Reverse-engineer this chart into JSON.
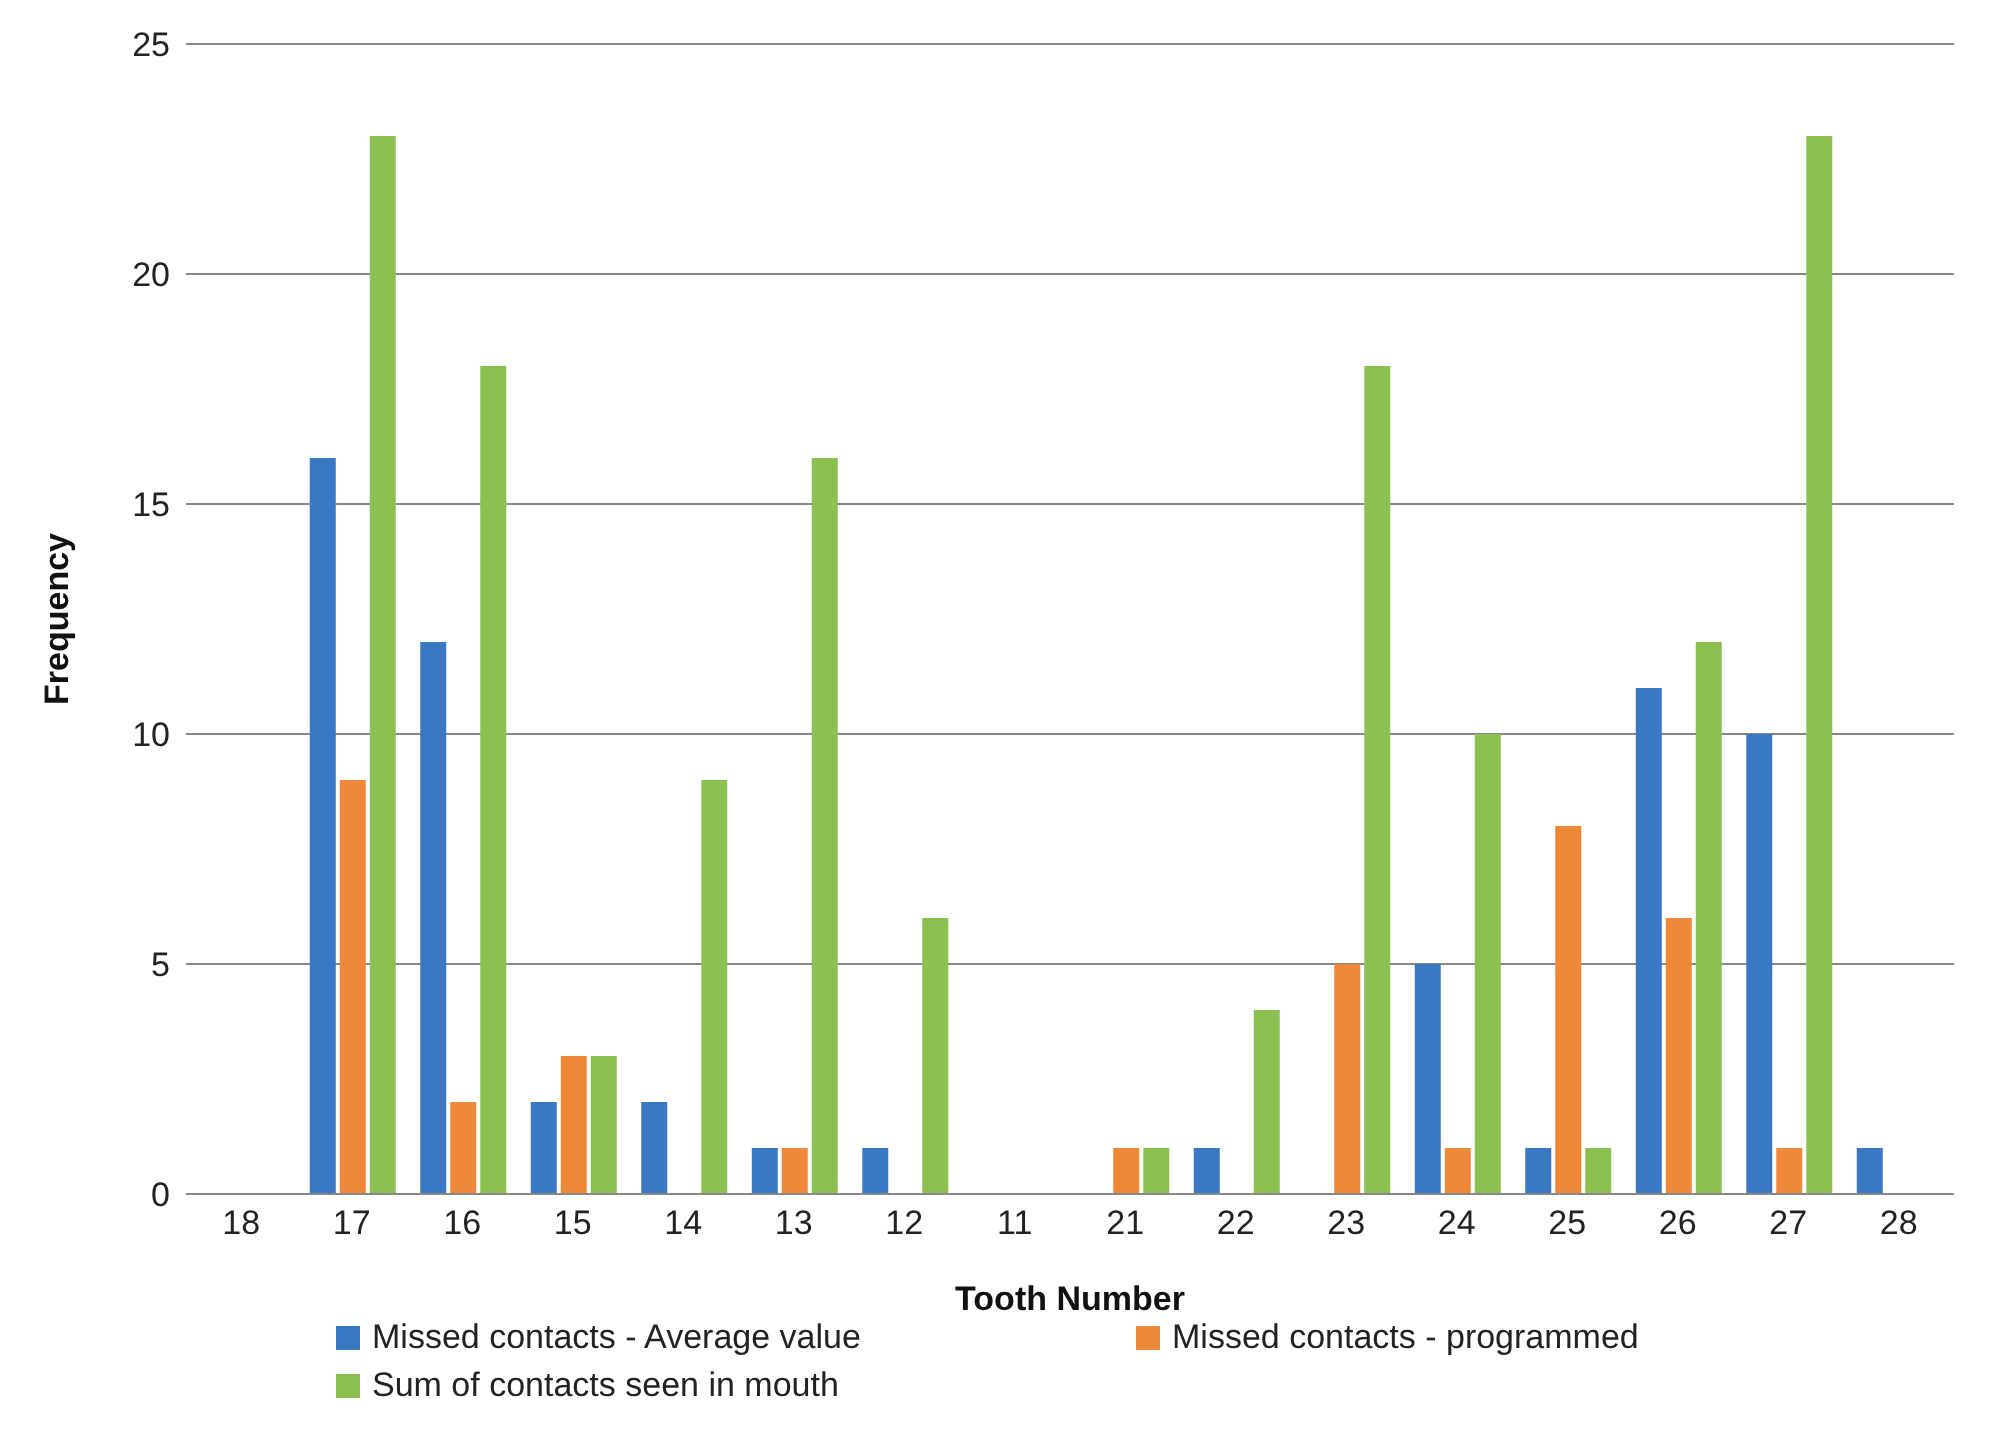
{
  "chart_data": {
    "type": "bar",
    "xlabel": "Tooth Number",
    "ylabel": "Frequency",
    "categories": [
      "18",
      "17",
      "16",
      "15",
      "14",
      "13",
      "12",
      "11",
      "21",
      "22",
      "23",
      "24",
      "25",
      "26",
      "27",
      "28"
    ],
    "series": [
      {
        "name": "Missed contacts - Average value",
        "color": "#3a78c3",
        "values": [
          0,
          16,
          12,
          2,
          2,
          1,
          1,
          0,
          0,
          1,
          0,
          5,
          1,
          11,
          10,
          1
        ]
      },
      {
        "name": "Missed contacts - programmed",
        "color": "#f0883a",
        "values": [
          0,
          9,
          2,
          3,
          0,
          1,
          0,
          0,
          1,
          0,
          5,
          1,
          8,
          6,
          1,
          0
        ]
      },
      {
        "name": "Sum of contacts seen in mouth",
        "color": "#8cc152",
        "values": [
          0,
          23,
          18,
          3,
          9,
          16,
          6,
          0,
          1,
          4,
          18,
          10,
          1,
          12,
          23,
          0
        ]
      }
    ],
    "ylim": [
      0,
      25
    ],
    "yticks": [
      0,
      5,
      10,
      15,
      20,
      25
    ],
    "grid": "y",
    "legend": "bottom"
  }
}
